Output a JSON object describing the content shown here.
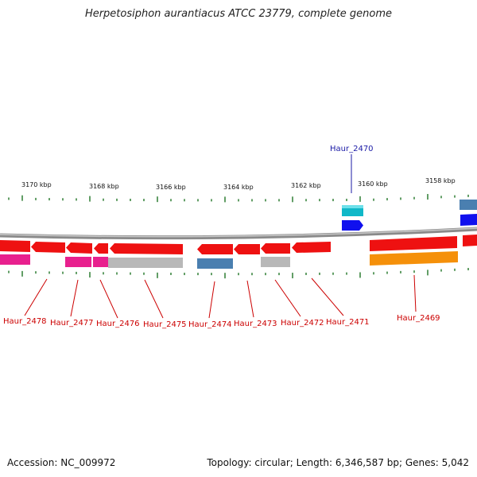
{
  "title": "Herpetosiphon aurantiacus ATCC 23779, complete genome",
  "footer": {
    "accession": "Accession: NC_009972",
    "summary": "Topology: circular; Length: 6,346,587 bp; Genes: 5,042"
  },
  "colors": {
    "backbone": "#8a8a8a",
    "tick": "#2e7d32",
    "label_red": "#cc0000",
    "label_blue": "#1a1aa6",
    "red": "#ee1111",
    "magenta": "#e8208e",
    "gray": "#b8b8b8",
    "steel": "#4a7fb0",
    "blue": "#1010ee",
    "cyan": "#10b8c8",
    "orange": "#f5900a"
  },
  "ruler": {
    "labels": [
      "3170 kbp",
      "3168 kbp",
      "3166 kbp",
      "3164 kbp",
      "3162 kbp",
      "3160 kbp",
      "3158 kbp"
    ]
  },
  "genes": [
    {
      "label": "Haur_2478",
      "color": "red"
    },
    {
      "label": "Haur_2477",
      "color": "red"
    },
    {
      "label": "Haur_2476",
      "color": "red"
    },
    {
      "label": "Haur_2475",
      "color": "red"
    },
    {
      "label": "Haur_2474",
      "color": "red"
    },
    {
      "label": "Haur_2473",
      "color": "red"
    },
    {
      "label": "Haur_2472",
      "color": "red"
    },
    {
      "label": "Haur_2471",
      "color": "red"
    },
    {
      "label": "Haur_2470",
      "color": "blue"
    },
    {
      "label": "Haur_2469",
      "color": "red"
    }
  ]
}
